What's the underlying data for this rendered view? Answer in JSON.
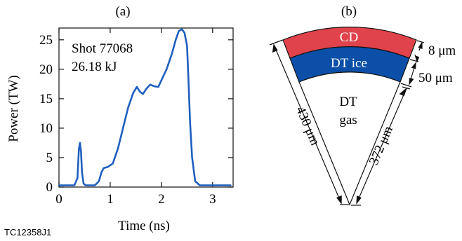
{
  "figure_id": "TC12358J1",
  "panel_a": {
    "label": "(a)",
    "annotation_lines": [
      "Shot 77068",
      "26.18 kJ"
    ]
  },
  "panel_b": {
    "label": "(b)",
    "layers": {
      "outer": {
        "text": "CD",
        "color": "#e0434b"
      },
      "middle": {
        "text": "DT ice",
        "color": "#0b4fa8"
      },
      "inner_line1": "DT",
      "inner_line2": "gas"
    },
    "dimensions": {
      "outer_radius_label": "430 μm",
      "inner_radius_label": "372 μm",
      "cd_thickness_label": "8 μm",
      "ice_thickness_label": "50 μm"
    }
  },
  "chart_data": {
    "type": "line",
    "title": "",
    "xlabel": "Time (ns)",
    "ylabel": "Power (TW)",
    "xlim": [
      0,
      3.4
    ],
    "ylim": [
      0,
      27
    ],
    "xticks": [
      "0",
      "1",
      "2",
      "3"
    ],
    "yticks": [
      "0",
      "5",
      "10",
      "15",
      "20",
      "25"
    ],
    "line_color": "#1f5fbf",
    "series": [
      {
        "x": [
          0,
          0.3,
          0.36,
          0.39,
          0.41,
          0.43,
          0.45,
          0.48,
          0.52,
          0.6,
          0.7,
          0.78,
          0.83,
          0.87,
          0.9,
          0.95,
          1.05,
          1.15,
          1.25,
          1.35,
          1.45,
          1.52,
          1.58,
          1.64,
          1.7,
          1.78,
          1.86,
          1.94,
          2.02,
          2.1,
          2.2,
          2.28,
          2.34,
          2.4,
          2.45,
          2.5,
          2.53,
          2.56,
          2.6,
          2.66,
          2.75,
          3.0,
          3.35
        ],
        "y": [
          0.3,
          0.3,
          1.5,
          6.5,
          7.5,
          6.0,
          2.5,
          0.6,
          0.3,
          0.3,
          0.3,
          1.0,
          2.5,
          3.2,
          3.3,
          3.4,
          4.0,
          6.5,
          10.0,
          13.5,
          16.0,
          17.0,
          16.2,
          15.8,
          16.6,
          17.4,
          17.1,
          17.0,
          18.5,
          20.0,
          22.5,
          25.0,
          26.5,
          26.8,
          26.2,
          24.0,
          18.0,
          11.0,
          5.0,
          1.0,
          0.3,
          0.3,
          0.3
        ]
      }
    ]
  }
}
